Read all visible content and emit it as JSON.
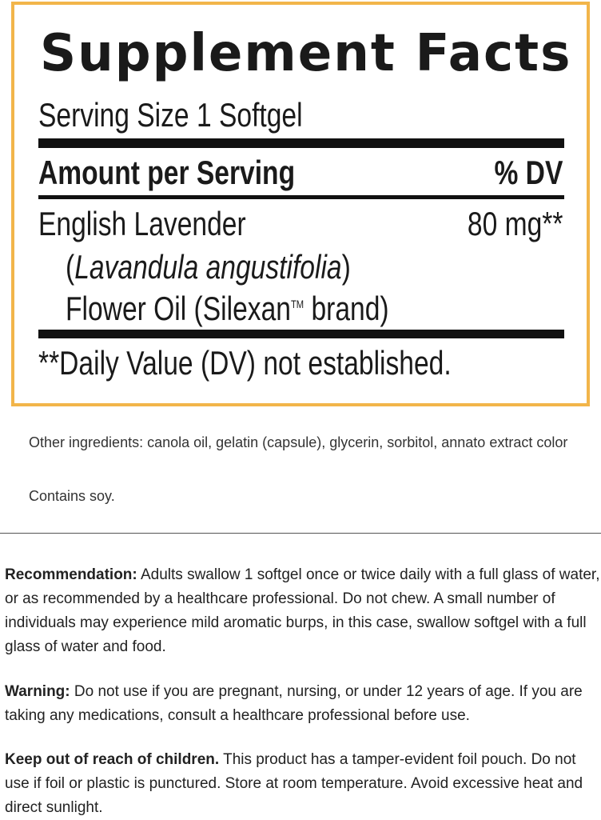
{
  "facts": {
    "title": "Supplement Facts",
    "serving_size": "Serving Size 1 Softgel",
    "header_left": "Amount per Serving",
    "header_right": "% DV",
    "ingredient_line1": "English Lavender",
    "ingredient_paren_open": "(",
    "ingredient_latin": "Lavandula angustifolia",
    "ingredient_paren_close": ")",
    "ingredient_line3a": "Flower Oil (Silexan",
    "ingredient_tm": "TM",
    "ingredient_line3b": " brand)",
    "amount": "80 mg**",
    "footnote": "**Daily Value (DV) not established.",
    "border_color": "#f2b54a"
  },
  "other": {
    "ingredients": "Other ingredients: canola oil, gelatin (capsule), glycerin, sorbitol, annato extract color",
    "allergen": "Contains soy."
  },
  "sections": [
    {
      "label": "Recommendation:",
      "text": " Adults swallow 1 softgel once or twice daily with a full glass of water, or as recommended by a healthcare professional. Do not chew. A small number of individuals may experience mild aromatic burps, in this case, swallow softgel with a full glass of water and food."
    },
    {
      "label": "Warning:",
      "text": " Do not use if you are pregnant, nursing, or under 12 years of age. If you are taking any medications, consult a healthcare professional before use."
    },
    {
      "label": "Keep out of reach of children.",
      "text": " This product has a tamper-evident foil pouch. Do not use if foil or plastic is punctured. Store at room temperature. Avoid excessive heat and direct sunlight."
    }
  ]
}
